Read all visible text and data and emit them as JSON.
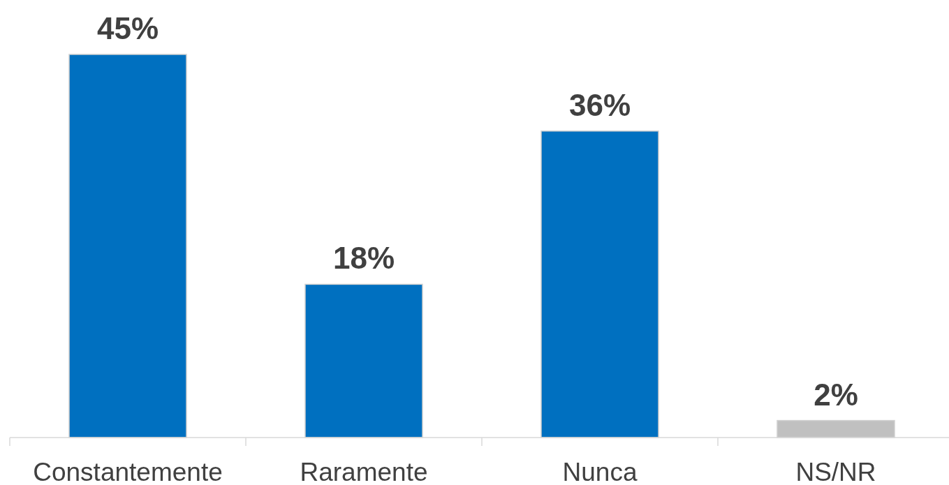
{
  "chart_data": {
    "type": "bar",
    "categories": [
      "Constantemente",
      "Raramente",
      "Nunca",
      "NS/NR"
    ],
    "values": [
      45,
      18,
      36,
      2
    ],
    "colors": [
      "#0070c0",
      "#0070c0",
      "#0070c0",
      "#c0c0c0"
    ],
    "value_labels": [
      "45%",
      "18%",
      "36%",
      "2%"
    ]
  }
}
